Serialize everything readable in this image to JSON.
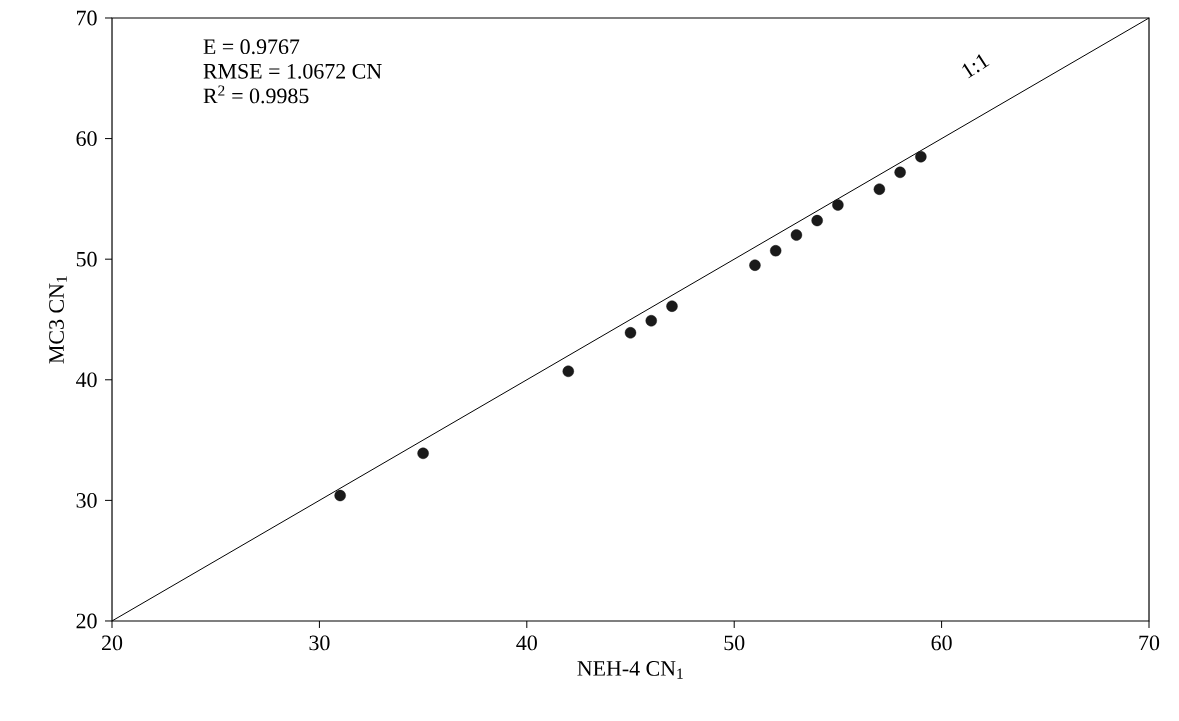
{
  "chart_data": {
    "type": "scatter",
    "xlabel": "NEH-4 CN$_{1}$",
    "ylabel": "MC3 CN$_{1}$",
    "xlim": [
      20,
      70
    ],
    "ylim": [
      20,
      70
    ],
    "xticks": [
      20,
      30,
      40,
      50,
      60,
      70
    ],
    "yticks": [
      20,
      30,
      40,
      50,
      60,
      70
    ],
    "grid": false,
    "annotations": [
      "E = 0.9767",
      "RMSE = 1.0672 CN",
      "R$^{2}$ = 0.9985"
    ],
    "series": [
      {
        "marker": "circle",
        "color": "#1a1a1a",
        "x": [
          31,
          35,
          42,
          45,
          46,
          47,
          51,
          52,
          53,
          54,
          55,
          57,
          58,
          59
        ],
        "values": [
          30.4,
          33.9,
          40.7,
          43.9,
          44.9,
          46.1,
          49.5,
          50.7,
          52.0,
          53.2,
          54.5,
          55.8,
          57.2,
          58.5
        ]
      },
      {
        "type": "line",
        "name": "1:1",
        "color": "#000000",
        "line_style": "solid",
        "marker": "none",
        "x": [
          20,
          70
        ],
        "values": [
          20,
          70
        ]
      }
    ]
  }
}
